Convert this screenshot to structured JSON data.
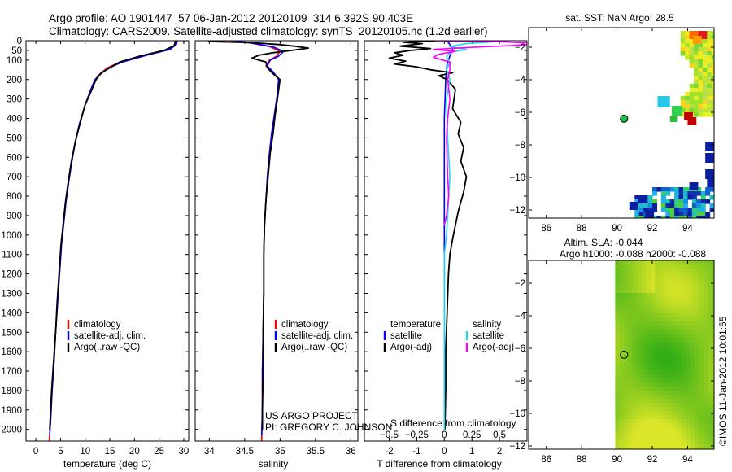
{
  "title_line1": "Argo profile: AO 1901447_57 06-Jan-2012 20120109_314 6.392S 90.403E",
  "title_line2": "Climatology: CARS2009. Satellite-adjusted climatology: synTS_20120105.nc (1.2d earlier)",
  "side_stamp": "©IMOS 11-Jan-2012 10:01:55",
  "colors": {
    "climatology": "#ff0000",
    "satellite": "#0000ff",
    "argo": "#000000",
    "salinity_sat": "#22d3ee",
    "salinity_argo": "#ff00ff"
  },
  "depth_ticks": [
    0,
    50,
    100,
    200,
    300,
    400,
    500,
    600,
    700,
    800,
    900,
    1000,
    1100,
    1200,
    1300,
    1400,
    1500,
    1600,
    1700,
    1800,
    1900,
    2000
  ],
  "chart_data": [
    {
      "id": "temperature",
      "type": "line",
      "xlabel": "temperature (deg C)",
      "ylabel": "depth",
      "xlim": [
        -2,
        31
      ],
      "xticks": [
        0,
        5,
        10,
        15,
        20,
        25,
        30
      ],
      "ylim_depth": [
        0,
        2060
      ],
      "legend": [
        "climatology",
        "satellite-adj. clim.",
        "Argo(..raw -QC)"
      ],
      "series": [
        {
          "name": "climatology",
          "color": "#ff0000",
          "points": [
            [
              28.6,
              0
            ],
            [
              28.4,
              20
            ],
            [
              27,
              45
            ],
            [
              22,
              75
            ],
            [
              17,
              110
            ],
            [
              14.5,
              140
            ],
            [
              13,
              170
            ],
            [
              12,
              200
            ],
            [
              11,
              260
            ],
            [
              10,
              330
            ],
            [
              8.8,
              430
            ],
            [
              8,
              520
            ],
            [
              7.3,
              620
            ],
            [
              6.7,
              720
            ],
            [
              6.1,
              830
            ],
            [
              5.6,
              950
            ],
            [
              5.2,
              1050
            ],
            [
              4.8,
              1200
            ],
            [
              4.4,
              1350
            ],
            [
              4,
              1500
            ],
            [
              3.7,
              1650
            ],
            [
              3.3,
              1800
            ],
            [
              3,
              1950
            ],
            [
              2.7,
              2060
            ]
          ]
        },
        {
          "name": "satellite-adj. clim.",
          "color": "#0000ff",
          "points": [
            [
              28.7,
              0
            ],
            [
              28.5,
              20
            ],
            [
              27.2,
              45
            ],
            [
              22.5,
              75
            ],
            [
              17.5,
              110
            ],
            [
              14.8,
              140
            ],
            [
              13.2,
              170
            ],
            [
              12,
              200
            ],
            [
              11,
              260
            ],
            [
              10,
              330
            ],
            [
              8.8,
              430
            ],
            [
              8,
              520
            ],
            [
              7.3,
              620
            ],
            [
              6.7,
              720
            ],
            [
              6.1,
              830
            ],
            [
              5.6,
              950
            ],
            [
              5.2,
              1050
            ],
            [
              4.8,
              1200
            ],
            [
              4.4,
              1350
            ],
            [
              4,
              1500
            ],
            [
              3.7,
              1650
            ],
            [
              3.3,
              1800
            ],
            [
              3,
              1950
            ],
            [
              2.8,
              2030
            ]
          ]
        },
        {
          "name": "Argo(..raw -QC)",
          "color": "#000000",
          "points": [
            [
              28.3,
              0
            ],
            [
              28.1,
              25
            ],
            [
              26,
              50
            ],
            [
              21,
              80
            ],
            [
              17,
              110
            ],
            [
              15,
              140
            ],
            [
              13.3,
              165
            ],
            [
              12.2,
              200
            ],
            [
              11.2,
              260
            ],
            [
              10,
              330
            ],
            [
              8.9,
              430
            ],
            [
              8,
              520
            ],
            [
              7.2,
              620
            ],
            [
              6.6,
              720
            ],
            [
              6,
              830
            ],
            [
              5.5,
              950
            ],
            [
              5.1,
              1050
            ],
            [
              4.7,
              1200
            ],
            [
              4.3,
              1350
            ],
            [
              4,
              1500
            ],
            [
              3.6,
              1650
            ],
            [
              3.2,
              1800
            ],
            [
              2.9,
              1950
            ],
            [
              2.8,
              2000
            ]
          ]
        }
      ]
    },
    {
      "id": "salinity",
      "type": "line",
      "xlabel": "salinity",
      "ylabel": "depth",
      "xlim": [
        33.8,
        36.1
      ],
      "xticks": [
        34,
        34.5,
        35,
        35.5,
        36
      ],
      "ylim_depth": [
        0,
        2060
      ],
      "legend": [
        "climatology",
        "satellite-adj. clim.",
        "Argo(..raw -QC)"
      ],
      "annotation": [
        "US ARGO PROJECT",
        "PI: GREGORY C. JOHNSON"
      ],
      "series": [
        {
          "name": "climatology",
          "color": "#ff0000",
          "points": [
            [
              34.3,
              0
            ],
            [
              34.55,
              10
            ],
            [
              34.85,
              30
            ],
            [
              35.0,
              55
            ],
            [
              34.95,
              80
            ],
            [
              34.85,
              100
            ],
            [
              34.8,
              130
            ],
            [
              34.9,
              160
            ],
            [
              34.98,
              200
            ],
            [
              34.96,
              280
            ],
            [
              34.92,
              380
            ],
            [
              34.88,
              480
            ],
            [
              34.85,
              580
            ],
            [
              34.82,
              700
            ],
            [
              34.8,
              820
            ],
            [
              34.78,
              950
            ],
            [
              34.77,
              1100
            ],
            [
              34.77,
              1300
            ],
            [
              34.76,
              1500
            ],
            [
              34.75,
              1700
            ],
            [
              34.75,
              1900
            ],
            [
              34.74,
              2060
            ]
          ]
        },
        {
          "name": "satellite-adj. clim.",
          "color": "#0000ff",
          "points": [
            [
              34.35,
              0
            ],
            [
              34.6,
              12
            ],
            [
              34.9,
              32
            ],
            [
              35.05,
              55
            ],
            [
              34.98,
              80
            ],
            [
              34.86,
              100
            ],
            [
              34.82,
              130
            ],
            [
              34.9,
              160
            ],
            [
              34.98,
              200
            ],
            [
              34.96,
              280
            ],
            [
              34.92,
              380
            ],
            [
              34.88,
              480
            ],
            [
              34.85,
              580
            ],
            [
              34.82,
              700
            ],
            [
              34.8,
              820
            ],
            [
              34.78,
              950
            ],
            [
              34.77,
              1100
            ],
            [
              34.77,
              1300
            ],
            [
              34.76,
              1500
            ],
            [
              34.75,
              1700
            ],
            [
              34.75,
              1900
            ],
            [
              34.74,
              2030
            ]
          ]
        },
        {
          "name": "Argo(..raw -QC)",
          "color": "#000000",
          "points": [
            [
              33.98,
              0
            ],
            [
              34.1,
              5
            ],
            [
              34.6,
              10
            ],
            [
              35.0,
              20
            ],
            [
              35.2,
              28
            ],
            [
              35.4,
              38
            ],
            [
              35.2,
              48
            ],
            [
              34.9,
              62
            ],
            [
              34.7,
              75
            ],
            [
              34.6,
              90
            ],
            [
              34.8,
              110
            ],
            [
              34.82,
              140
            ],
            [
              34.9,
              170
            ],
            [
              35.0,
              200
            ],
            [
              34.97,
              280
            ],
            [
              34.93,
              380
            ],
            [
              34.9,
              480
            ],
            [
              34.86,
              580
            ],
            [
              34.83,
              700
            ],
            [
              34.8,
              820
            ],
            [
              34.78,
              950
            ],
            [
              34.77,
              1100
            ],
            [
              34.77,
              1300
            ],
            [
              34.76,
              1500
            ],
            [
              34.76,
              1700
            ],
            [
              34.75,
              1900
            ],
            [
              34.75,
              2000
            ]
          ]
        }
      ]
    },
    {
      "id": "differences",
      "type": "line",
      "xlabel_bottom": "T difference from climatology",
      "xlabel_top": "S difference from climatology",
      "ylabel": "depth",
      "xlim_T": [
        -2.9,
        3.0
      ],
      "xticks_T": [
        -2,
        -1,
        0,
        1,
        2
      ],
      "xlim_S": [
        -0.725,
        0.75
      ],
      "xticks_S": [
        -0.5,
        -0.25,
        0,
        0.25,
        0.5
      ],
      "ylim_depth": [
        0,
        2060
      ],
      "legend_temperature": {
        "title": "temperature",
        "items": [
          "satellite",
          "Argo(-adj)"
        ]
      },
      "legend_salinity": {
        "title": "salinity",
        "items": [
          "satellite",
          "Argo(-adj)"
        ]
      },
      "series": [
        {
          "name": "temperature satellite",
          "axis": "T",
          "color": "#0000ff",
          "points": [
            [
              0.1,
              0
            ],
            [
              0.2,
              20
            ],
            [
              0.3,
              45
            ],
            [
              0.2,
              80
            ],
            [
              0.1,
              120
            ],
            [
              0.05,
              200
            ],
            [
              0,
              400
            ],
            [
              0,
              800
            ],
            [
              0,
              1200
            ],
            [
              0,
              1600
            ],
            [
              0,
              2000
            ]
          ]
        },
        {
          "name": "temperature Argo(-adj)",
          "axis": "T",
          "color": "#000000",
          "points": [
            [
              -0.3,
              0
            ],
            [
              -1.5,
              8
            ],
            [
              -0.8,
              15
            ],
            [
              -1.6,
              28
            ],
            [
              -0.5,
              40
            ],
            [
              -1.2,
              50
            ],
            [
              -1.8,
              62
            ],
            [
              -1.5,
              75
            ],
            [
              -2.0,
              90
            ],
            [
              -1.4,
              105
            ],
            [
              -1.8,
              120
            ],
            [
              -1.0,
              135
            ],
            [
              -0.5,
              150
            ],
            [
              0.3,
              165
            ],
            [
              -0.2,
              180
            ],
            [
              0.1,
              200
            ],
            [
              0.4,
              250
            ],
            [
              0.3,
              350
            ],
            [
              0.6,
              420
            ],
            [
              0.5,
              480
            ],
            [
              0.7,
              550
            ],
            [
              0.6,
              620
            ],
            [
              0.8,
              700
            ],
            [
              0.7,
              780
            ],
            [
              0.6,
              830
            ],
            [
              0.5,
              880
            ],
            [
              0.4,
              950
            ],
            [
              0.3,
              1020
            ],
            [
              0.2,
              1100
            ],
            [
              0.15,
              1200
            ],
            [
              0.1,
              1400
            ],
            [
              0.05,
              1600
            ],
            [
              0.05,
              1800
            ],
            [
              0.02,
              2000
            ]
          ]
        },
        {
          "name": "salinity satellite",
          "axis": "S",
          "color": "#22d3ee",
          "points": [
            [
              0.6,
              0
            ],
            [
              0.2,
              15
            ],
            [
              0.05,
              30
            ],
            [
              0.2,
              45
            ],
            [
              0.05,
              60
            ],
            [
              0.02,
              85
            ],
            [
              0.05,
              110
            ],
            [
              0.02,
              150
            ],
            [
              0.05,
              200
            ],
            [
              0.02,
              300
            ],
            [
              0.03,
              500
            ],
            [
              0.05,
              700
            ],
            [
              0.03,
              900
            ],
            [
              0.02,
              1000
            ],
            [
              0,
              1100
            ],
            [
              0,
              1500
            ],
            [
              0,
              2000
            ]
          ]
        },
        {
          "name": "salinity Argo(-adj)",
          "axis": "S",
          "color": "#ff00ff",
          "points": [
            [
              -0.1,
              0
            ],
            [
              0.5,
              5
            ],
            [
              0.9,
              15
            ],
            [
              0.6,
              25
            ],
            [
              0.2,
              35
            ],
            [
              -0.1,
              45
            ],
            [
              0.1,
              55
            ],
            [
              -0.05,
              70
            ],
            [
              -0.1,
              85
            ],
            [
              0.05,
              110
            ],
            [
              0.05,
              150
            ],
            [
              0.03,
              200
            ],
            [
              0.05,
              300
            ],
            [
              0.03,
              400
            ],
            [
              0.02,
              500
            ],
            [
              0.03,
              700
            ],
            [
              0.04,
              800
            ],
            [
              0.02,
              900
            ],
            [
              0,
              950
            ]
          ]
        }
      ]
    },
    {
      "id": "sst_map",
      "type": "heatmap",
      "title": "sat. SST: NaN Argo: 28.5",
      "xlim": [
        85,
        95.5
      ],
      "ylim": [
        -12.5,
        -0.8
      ],
      "xticks": [
        86,
        88,
        90,
        92,
        94
      ],
      "yticks": [
        -2,
        -4,
        -6,
        -8,
        -10,
        -12
      ],
      "argo_marker": {
        "lon": 90.403,
        "lat": -6.392
      }
    },
    {
      "id": "sla_map",
      "type": "heatmap",
      "title_line1": "Altim. SLA: -0.044",
      "title_line2": "Argo h1000: -0.088 h2000: -0.088",
      "xlim": [
        85,
        95.5
      ],
      "ylim": [
        -12.2,
        -0.6
      ],
      "xticks": [
        86,
        88,
        90,
        92,
        94
      ],
      "yticks": [
        -2,
        -4,
        -6,
        -8,
        -10,
        -12
      ],
      "argo_marker": {
        "lon": 90.403,
        "lat": -6.392
      }
    }
  ]
}
